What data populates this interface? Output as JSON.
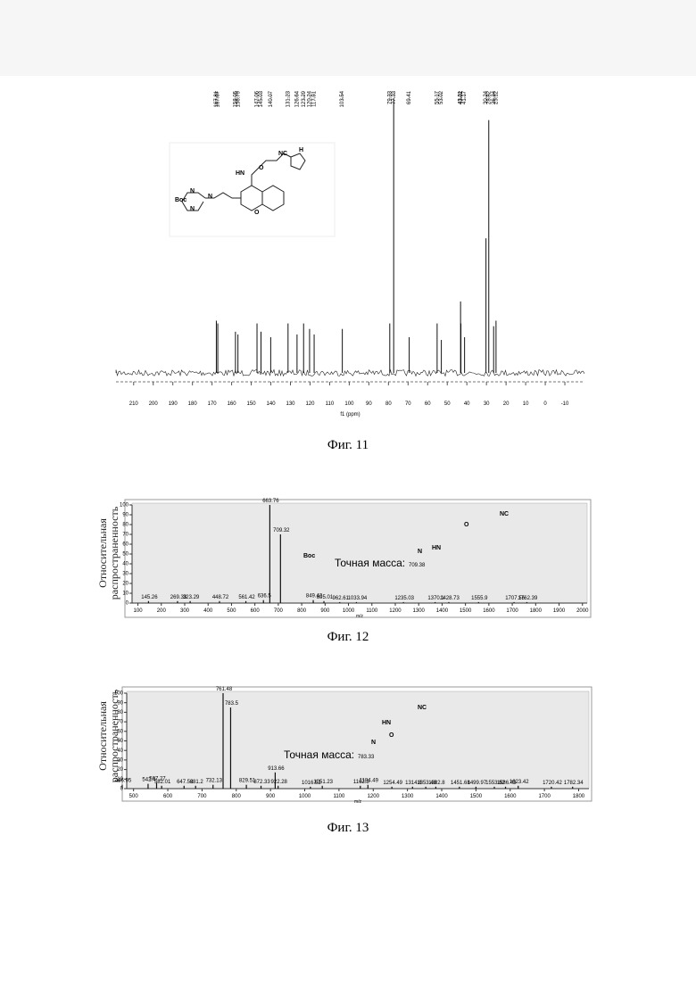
{
  "figures": [
    {
      "caption": "Фиг. 11",
      "structure_labels": [
        "NC",
        "H",
        "HN",
        "O",
        "O",
        "N",
        "Boc",
        "N",
        "N"
      ],
      "chart": {
        "type": "nmr",
        "xlabel": "f1 (ppm)",
        "xlim": [
          219,
          -20
        ],
        "ylim": [
          0,
          100
        ],
        "xticks": [
          210,
          200,
          190,
          180,
          170,
          160,
          150,
          140,
          130,
          120,
          110,
          100,
          90,
          80,
          70,
          60,
          50,
          40,
          30,
          20,
          10,
          0,
          -10
        ],
        "color": "#111111",
        "x": [
          167.81,
          167.07,
          158.05,
          156.79,
          147.06,
          145.03,
          140.07,
          131.23,
          126.64,
          123.29,
          120.24,
          117.91,
          103.54,
          79.33,
          77.33,
          69.41,
          55.17,
          53.02,
          43.21,
          43.02,
          41.17,
          30.24,
          28.82,
          26.34,
          25.12
        ],
        "values": [
          19,
          18,
          15,
          14,
          18,
          15,
          13,
          18,
          14,
          18,
          16,
          14,
          16,
          18,
          100,
          13,
          18,
          12,
          26,
          18,
          13,
          49,
          92,
          17,
          19
        ]
      }
    },
    {
      "caption": "Фиг. 12",
      "structure_labels": [
        "Boc",
        "NC",
        "HN",
        "O",
        "N"
      ],
      "chart": {
        "type": "ms",
        "xlabel": "m/z",
        "ylabel": "Относительная распространенность",
        "annotation": "Точная масса:",
        "exact_mass": 709.38,
        "xlim": [
          75,
          2020
        ],
        "ylim": [
          0,
          100
        ],
        "xticks": [
          100,
          200,
          300,
          400,
          500,
          600,
          700,
          800,
          900,
          1000,
          1100,
          1200,
          1300,
          1400,
          1500,
          1600,
          1700,
          1800,
          1900,
          2000
        ],
        "yticks": [
          0,
          10,
          20,
          30,
          40,
          50,
          60,
          70,
          80,
          90,
          100
        ],
        "color": "#111111",
        "x": [
          145.26,
          269.33,
          323.29,
          448.72,
          561.42,
          636.5,
          663.76,
          709.32,
          849.42,
          895.01,
          962.61,
          1033.94,
          1235.03,
          1370.1,
          1428.73,
          1555.9,
          1707.55,
          1762.39
        ],
        "values": [
          2,
          2,
          2,
          2,
          2,
          3,
          100,
          70,
          3,
          2,
          1,
          1,
          1,
          1,
          1,
          1,
          1,
          1
        ]
      }
    },
    {
      "caption": "Фиг. 13",
      "structure_labels": [
        "NC",
        "HN",
        "O",
        "N"
      ],
      "chart": {
        "type": "ms",
        "xlabel": "m/z",
        "ylabel": "Относительная распространенность",
        "annotation": "Точная масса:",
        "exact_mass": 783.33,
        "xlim": [
          480,
          1830
        ],
        "ylim": [
          0,
          100
        ],
        "xticks": [
          500,
          600,
          700,
          800,
          900,
          1000,
          1100,
          1200,
          1300,
          1400,
          1500,
          1600,
          1700,
          1800
        ],
        "yticks": [
          0,
          10,
          20,
          30,
          40,
          50,
          60,
          70,
          80,
          90,
          100
        ],
        "color": "#111111",
        "x": [
          466.95,
          542.4,
          567.27,
          582.01,
          647.52,
          681.2,
          732.13,
          761.48,
          783.5,
          829.51,
          872.33,
          913.66,
          922.28,
          1016.52,
          1051.23,
          1162.3,
          1184.49,
          1254.49,
          1314.8,
          1353.48,
          1382.8,
          1451.68,
          1499.97,
          1553.82,
          1586.43,
          1623.42,
          1720.42,
          1782.34
        ],
        "values": [
          4,
          5,
          6,
          3,
          3,
          3,
          4,
          100,
          85,
          4,
          3,
          17,
          3,
          2,
          3,
          3,
          4,
          2,
          2,
          2,
          2,
          2,
          2,
          2,
          2,
          3,
          2,
          2
        ]
      }
    }
  ]
}
